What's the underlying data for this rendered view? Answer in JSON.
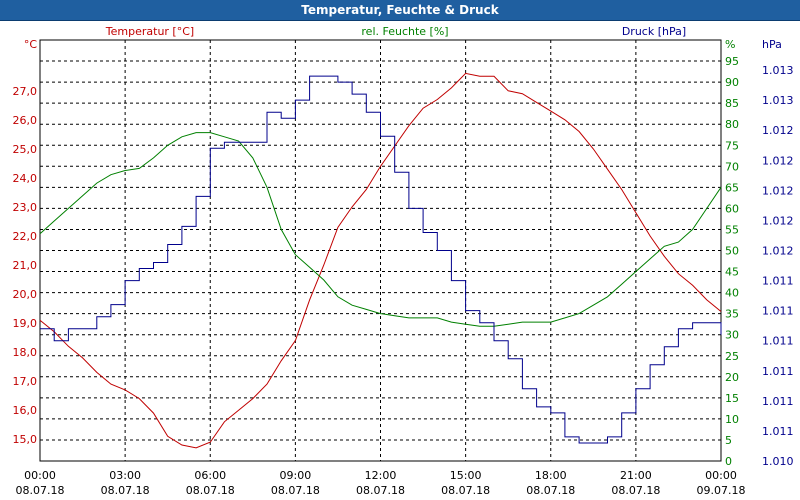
{
  "window": {
    "title": "Temperatur, Feuchte & Druck"
  },
  "chart_data": {
    "type": "line",
    "title": "Temperatur, Feuchte & Druck",
    "grid": true,
    "colors": {
      "temp": "#c00000",
      "hum": "#008000",
      "press": "#00008c",
      "grid": "#000000"
    },
    "x_ticks": [
      {
        "hour": 0,
        "time": "00:00",
        "date": "08.07.18"
      },
      {
        "hour": 3,
        "time": "03:00",
        "date": "08.07.18"
      },
      {
        "hour": 6,
        "time": "06:00",
        "date": "08.07.18"
      },
      {
        "hour": 9,
        "time": "09:00",
        "date": "08.07.18"
      },
      {
        "hour": 12,
        "time": "12:00",
        "date": "08.07.18"
      },
      {
        "hour": 15,
        "time": "15:00",
        "date": "08.07.18"
      },
      {
        "hour": 18,
        "time": "18:00",
        "date": "08.07.18"
      },
      {
        "hour": 21,
        "time": "21:00",
        "date": "08.07.18"
      },
      {
        "hour": 24,
        "time": "00:00",
        "date": "09.07.18"
      }
    ],
    "axes": {
      "temp": {
        "label": "Temperatur [°C]",
        "unit": "°C",
        "range": [
          14.25,
          28.75
        ],
        "ticks": [
          "15,0",
          "16,0",
          "17,0",
          "18,0",
          "19,0",
          "20,0",
          "21,0",
          "22,0",
          "23,0",
          "24,0",
          "25,0",
          "26,0",
          "27,0"
        ],
        "tick_values": [
          15,
          16,
          17,
          18,
          19,
          20,
          21,
          22,
          23,
          24,
          25,
          26,
          27
        ]
      },
      "hum": {
        "label": "rel. Feuchte [%]",
        "unit": "%",
        "range": [
          0,
          100
        ],
        "ticks": [
          "0",
          "5",
          "10",
          "15",
          "20",
          "25",
          "30",
          "35",
          "40",
          "45",
          "50",
          "55",
          "60",
          "65",
          "70",
          "75",
          "80",
          "85",
          "90",
          "95"
        ],
        "tick_values": [
          0,
          5,
          10,
          15,
          20,
          25,
          30,
          35,
          40,
          45,
          50,
          55,
          60,
          65,
          70,
          75,
          80,
          85,
          90,
          95
        ]
      },
      "press": {
        "label": "Druck [hPa]",
        "unit": "hPa",
        "range": [
          1010.0,
          1013.5
        ],
        "ticks": [
          "1.010",
          "1.011",
          "1.011",
          "1.011",
          "1.011",
          "1.011",
          "1.011",
          "1.012",
          "1.012",
          "1.012",
          "1.012",
          "1.012",
          "1.013",
          "1.013"
        ],
        "tick_values": [
          1010.0,
          1010.25,
          1010.5,
          1010.75,
          1011.0,
          1011.25,
          1011.5,
          1011.75,
          1012.0,
          1012.25,
          1012.5,
          1012.75,
          1013.0,
          1013.25
        ]
      }
    },
    "series": [
      {
        "name": "Temperatur [°C]",
        "axis": "temp",
        "step": false,
        "points": [
          [
            0,
            19.1
          ],
          [
            0.5,
            18.7
          ],
          [
            1,
            18.2
          ],
          [
            1.5,
            17.8
          ],
          [
            2,
            17.3
          ],
          [
            2.5,
            16.9
          ],
          [
            3,
            16.7
          ],
          [
            3.5,
            16.4
          ],
          [
            4,
            15.9
          ],
          [
            4.5,
            15.1
          ],
          [
            5,
            14.8
          ],
          [
            5.5,
            14.7
          ],
          [
            6,
            14.9
          ],
          [
            6.5,
            15.6
          ],
          [
            7,
            16.0
          ],
          [
            7.5,
            16.4
          ],
          [
            8,
            16.9
          ],
          [
            8.5,
            17.7
          ],
          [
            9,
            18.4
          ],
          [
            9.5,
            19.8
          ],
          [
            10,
            21.0
          ],
          [
            10.5,
            22.3
          ],
          [
            11,
            23.0
          ],
          [
            11.5,
            23.6
          ],
          [
            12,
            24.4
          ],
          [
            12.5,
            25.1
          ],
          [
            13,
            25.8
          ],
          [
            13.5,
            26.4
          ],
          [
            14,
            26.7
          ],
          [
            14.5,
            27.1
          ],
          [
            15,
            27.6
          ],
          [
            15.5,
            27.5
          ],
          [
            16,
            27.5
          ],
          [
            16.5,
            27.0
          ],
          [
            17,
            26.9
          ],
          [
            17.5,
            26.6
          ],
          [
            18,
            26.3
          ],
          [
            18.5,
            26.0
          ],
          [
            19,
            25.6
          ],
          [
            19.5,
            25.0
          ],
          [
            20,
            24.3
          ],
          [
            20.5,
            23.6
          ],
          [
            21,
            22.8
          ],
          [
            21.5,
            22.0
          ],
          [
            22,
            21.3
          ],
          [
            22.5,
            20.7
          ],
          [
            23,
            20.3
          ],
          [
            23.5,
            19.8
          ],
          [
            24,
            19.4
          ]
        ]
      },
      {
        "name": "rel. Feuchte [%]",
        "axis": "hum",
        "step": false,
        "points": [
          [
            0,
            54
          ],
          [
            0.5,
            57
          ],
          [
            1,
            60
          ],
          [
            1.5,
            63
          ],
          [
            2,
            66
          ],
          [
            2.5,
            68
          ],
          [
            3,
            69
          ],
          [
            3.5,
            69.5
          ],
          [
            4,
            72
          ],
          [
            4.5,
            75
          ],
          [
            5,
            77
          ],
          [
            5.5,
            78
          ],
          [
            6,
            78
          ],
          [
            6.5,
            77
          ],
          [
            7,
            76
          ],
          [
            7.5,
            72
          ],
          [
            8,
            65
          ],
          [
            8.5,
            55
          ],
          [
            9,
            49
          ],
          [
            9.5,
            46
          ],
          [
            10,
            43
          ],
          [
            10.5,
            39
          ],
          [
            11,
            37
          ],
          [
            11.5,
            36
          ],
          [
            12,
            35
          ],
          [
            12.5,
            34.5
          ],
          [
            13,
            34
          ],
          [
            13.5,
            34
          ],
          [
            14,
            34
          ],
          [
            14.5,
            33
          ],
          [
            15,
            32.5
          ],
          [
            15.5,
            32
          ],
          [
            16,
            32
          ],
          [
            16.5,
            32.5
          ],
          [
            17,
            33
          ],
          [
            17.5,
            33
          ],
          [
            18,
            33
          ],
          [
            18.5,
            34
          ],
          [
            19,
            35
          ],
          [
            19.5,
            37
          ],
          [
            20,
            39
          ],
          [
            20.5,
            42
          ],
          [
            21,
            45
          ],
          [
            21.5,
            48
          ],
          [
            22,
            51
          ],
          [
            22.5,
            52
          ],
          [
            23,
            55
          ],
          [
            23.5,
            60
          ],
          [
            24,
            65
          ]
        ]
      },
      {
        "name": "Druck [hPa]",
        "axis": "press",
        "step": true,
        "points": [
          [
            0,
            1011.1
          ],
          [
            0.5,
            1011.0
          ],
          [
            1,
            1011.1
          ],
          [
            1.5,
            1011.1
          ],
          [
            2,
            1011.2
          ],
          [
            2.5,
            1011.3
          ],
          [
            3,
            1011.5
          ],
          [
            3.5,
            1011.6
          ],
          [
            4,
            1011.65
          ],
          [
            4.5,
            1011.8
          ],
          [
            5,
            1011.95
          ],
          [
            5.5,
            1012.2
          ],
          [
            6,
            1012.6
          ],
          [
            6.5,
            1012.65
          ],
          [
            7,
            1012.65
          ],
          [
            7.5,
            1012.65
          ],
          [
            8,
            1012.9
          ],
          [
            8.5,
            1012.85
          ],
          [
            9,
            1013.0
          ],
          [
            9.5,
            1013.2
          ],
          [
            10,
            1013.2
          ],
          [
            10.5,
            1013.15
          ],
          [
            11,
            1013.05
          ],
          [
            11.5,
            1012.9
          ],
          [
            12,
            1012.7
          ],
          [
            12.5,
            1012.4
          ],
          [
            13,
            1012.1
          ],
          [
            13.5,
            1011.9
          ],
          [
            14,
            1011.75
          ],
          [
            14.5,
            1011.5
          ],
          [
            15,
            1011.25
          ],
          [
            15.5,
            1011.15
          ],
          [
            16,
            1011.0
          ],
          [
            16.5,
            1010.85
          ],
          [
            17,
            1010.6
          ],
          [
            17.5,
            1010.45
          ],
          [
            18,
            1010.4
          ],
          [
            18.5,
            1010.2
          ],
          [
            19,
            1010.15
          ],
          [
            19.5,
            1010.15
          ],
          [
            20,
            1010.2
          ],
          [
            20.5,
            1010.4
          ],
          [
            21,
            1010.6
          ],
          [
            21.5,
            1010.8
          ],
          [
            22,
            1010.95
          ],
          [
            22.5,
            1011.1
          ],
          [
            23,
            1011.15
          ],
          [
            23.5,
            1011.15
          ],
          [
            24,
            1011.05
          ]
        ]
      }
    ]
  }
}
